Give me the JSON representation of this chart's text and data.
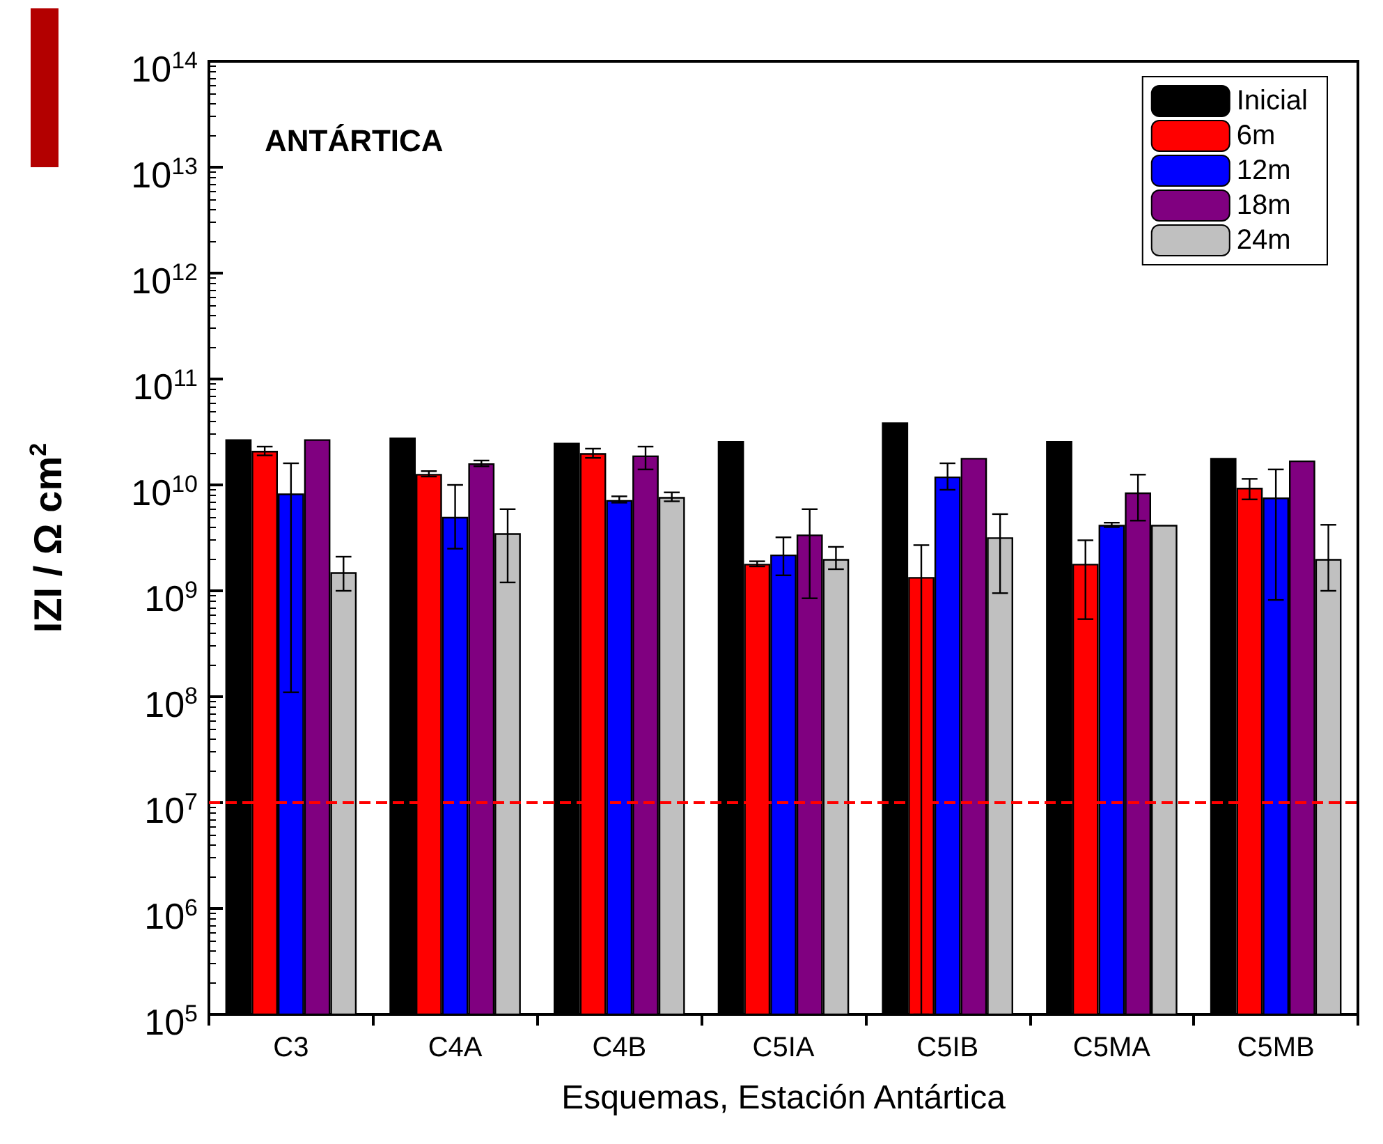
{
  "chart_data": {
    "type": "bar",
    "xlabel": "Esquemas, Estación Antártica",
    "ylabel": "IZI / Ω cm$^{2}$",
    "annotations": [
      "ANTÁRTICA"
    ],
    "categories": [
      "C3",
      "C4A",
      "C4B",
      "C5IA",
      "C5IB",
      "C5MA",
      "C5MB"
    ],
    "series": [
      {
        "name": "Inicial",
        "color": "#000000",
        "values": [
          27000000000.0,
          28000000000.0,
          25000000000.0,
          26000000000.0,
          39000000000.0,
          26000000000.0,
          18000000000.0
        ]
      },
      {
        "name": "6m",
        "color": "#ff0000",
        "values": [
          21000000000.0,
          12700000000.0,
          20000000000.0,
          1800000000.0,
          1350000000.0,
          1800000000.0,
          9400000000.0
        ],
        "errors": [
          [
            19000000000.0,
            23000000000.0
          ],
          [
            12000000000.0,
            13500000000.0
          ],
          [
            18000000000.0,
            22000000000.0
          ],
          [
            1700000000.0,
            1900000000.0
          ],
          [
            100000.0,
            2700000000.0
          ],
          [
            540000000.0,
            3000000000.0
          ],
          [
            7300000000.0,
            11400000000.0
          ]
        ]
      },
      {
        "name": "12m",
        "color": "#0000ff",
        "values": [
          8300000000.0,
          5000000000.0,
          7200000000.0,
          2200000000.0,
          12000000000.0,
          4200000000.0,
          7600000000.0
        ],
        "errors": [
          [
            110000000.0,
            16000000000.0
          ],
          [
            2500000000.0,
            10000000000.0
          ],
          [
            6800000000.0,
            7800000000.0
          ],
          [
            1400000000.0,
            3200000000.0
          ],
          [
            9000000000.0,
            16000000000.0
          ],
          [
            4000000000.0,
            4400000000.0
          ],
          [
            820000000.0,
            14000000000.0
          ]
        ]
      },
      {
        "name": "18m",
        "color": "#800080",
        "values": [
          27000000000.0,
          16000000000.0,
          19000000000.0,
          3400000000.0,
          18000000000.0,
          8500000000.0,
          17000000000.0
        ],
        "errors": [
          null,
          [
            15000000000.0,
            17000000000.0
          ],
          [
            14000000000.0,
            23000000000.0
          ],
          [
            850000000.0,
            5900000000.0
          ],
          null,
          [
            4600000000.0,
            12500000000.0
          ],
          null
        ]
      },
      {
        "name": "24m",
        "color": "#c0c0c0",
        "values": [
          1500000000.0,
          3500000000.0,
          7700000000.0,
          2000000000.0,
          3200000000.0,
          4200000000.0,
          2000000000.0
        ],
        "errors": [
          [
            1000000000.0,
            2100000000.0
          ],
          [
            1200000000.0,
            5900000000.0
          ],
          [
            7000000000.0,
            8500000000.0
          ],
          [
            1600000000.0,
            2600000000.0
          ],
          [
            950000000.0,
            5300000000.0
          ],
          null,
          [
            1000000000.0,
            4200000000.0
          ]
        ]
      }
    ],
    "log": "y",
    "ylim": [
      100000.0,
      100000000000000.0
    ],
    "yticks": [
      {
        "value": 100000.0,
        "label": "10$^{5}$"
      },
      {
        "value": 1000000.0,
        "label": "10$^{6}$"
      },
      {
        "value": 10000000.0,
        "label": "10$^{7}$"
      },
      {
        "value": 100000000.0,
        "label": "10$^{8}$"
      },
      {
        "value": 1000000000.0,
        "label": "10$^{9}$"
      },
      {
        "value": 10000000000.0,
        "label": "10$^{10}$"
      },
      {
        "value": 100000000000.0,
        "label": "10$^{11}$"
      },
      {
        "value": 1000000000000.0,
        "label": "10$^{12}$"
      },
      {
        "value": 10000000000000.0,
        "label": "10$^{13}$"
      },
      {
        "value": 100000000000000.0,
        "label": "10$^{14}$"
      }
    ],
    "ref_lines": [
      {
        "axis": "y",
        "value": 10000000.0,
        "color": "#ff0000",
        "line_style": "dashed"
      }
    ],
    "legend": "top right",
    "grid": false
  }
}
